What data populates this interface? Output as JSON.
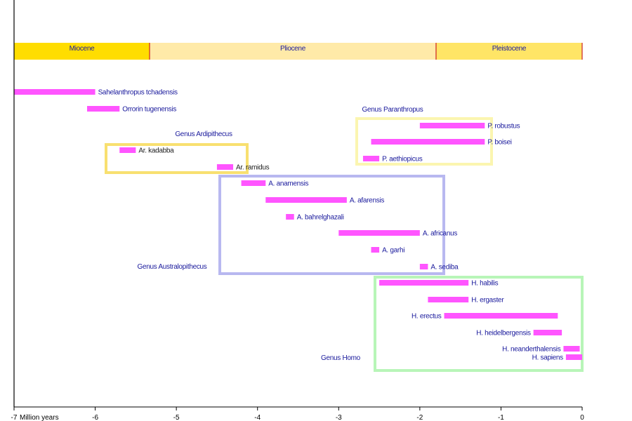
{
  "chart_data": {
    "type": "bar",
    "subtype": "timeline-range",
    "title": "",
    "xlabel": "Million years",
    "ylabel": "",
    "xlim": [
      -7,
      0
    ],
    "x_ticks": [
      -7,
      -6,
      -5,
      -4,
      -3,
      -2,
      -1,
      0
    ],
    "x_tick_labels": [
      "-7",
      "-6",
      "-5",
      "-4",
      "-3",
      "-2",
      "-1",
      "0"
    ],
    "grid": false,
    "bar_color": "#ff55ff",
    "epochs": [
      {
        "name": "Miocene",
        "start": -7.0,
        "end": -5.33,
        "color": "#ffdd00"
      },
      {
        "name": "Pliocene",
        "start": -5.33,
        "end": -1.8,
        "color": "#ffeaa8"
      },
      {
        "name": "Pleistocene",
        "start": -1.8,
        "end": 0,
        "color": "#ffe566"
      }
    ],
    "epoch_divider_color": "#cc2222",
    "species": [
      {
        "name": "Sahelanthropus tchadensis",
        "start": -7.0,
        "end": -6.0,
        "label_side": "right",
        "label_color": "#1a1a9c"
      },
      {
        "name": "Orrorin tugenensis",
        "start": -6.1,
        "end": -5.7,
        "label_side": "right",
        "label_color": "#1a1a9c"
      },
      {
        "name": "Ar. kadabba",
        "start": -5.7,
        "end": -5.5,
        "label_side": "right",
        "label_color": "#222222"
      },
      {
        "name": "Ar. ramidus",
        "start": -4.5,
        "end": -4.3,
        "label_side": "right",
        "label_color": "#222222"
      },
      {
        "name": "P. robustus",
        "start": -2.0,
        "end": -1.2,
        "label_side": "right",
        "label_color": "#1a1a9c"
      },
      {
        "name": "P. boisei",
        "start": -2.6,
        "end": -1.2,
        "label_side": "right",
        "label_color": "#1a1a9c"
      },
      {
        "name": "P. aethiopicus",
        "start": -2.7,
        "end": -2.5,
        "label_side": "right",
        "label_color": "#1a1a9c"
      },
      {
        "name": "A. anamensis",
        "start": -4.2,
        "end": -3.9,
        "label_side": "right",
        "label_color": "#1a1a9c"
      },
      {
        "name": "A. afarensis",
        "start": -3.9,
        "end": -2.9,
        "label_side": "right",
        "label_color": "#1a1a9c"
      },
      {
        "name": "A. bahrelghazali",
        "start": -3.65,
        "end": -3.55,
        "label_side": "right",
        "label_color": "#1a1a9c"
      },
      {
        "name": "A. africanus",
        "start": -3.0,
        "end": -2.0,
        "label_side": "right",
        "label_color": "#1a1a9c"
      },
      {
        "name": "A. garhi",
        "start": -2.6,
        "end": -2.5,
        "label_side": "right",
        "label_color": "#1a1a9c"
      },
      {
        "name": "A. sediba",
        "start": -2.0,
        "end": -1.9,
        "label_side": "right",
        "label_color": "#1a1a9c"
      },
      {
        "name": "H. habilis",
        "start": -2.5,
        "end": -1.4,
        "label_side": "right",
        "label_color": "#1a1a9c"
      },
      {
        "name": "H. ergaster",
        "start": -1.9,
        "end": -1.4,
        "label_side": "right",
        "label_color": "#1a1a9c"
      },
      {
        "name": "H. erectus",
        "start": -1.7,
        "end": -0.3,
        "label_side": "left",
        "label_color": "#1a1a9c"
      },
      {
        "name": "H. heidelbergensis",
        "start": -0.6,
        "end": -0.25,
        "label_side": "left",
        "label_color": "#1a1a9c"
      },
      {
        "name": "H. neanderthalensis",
        "start": -0.23,
        "end": -0.03,
        "label_side": "left",
        "label_color": "#1a1a9c"
      },
      {
        "name": "H. sapiens",
        "start": -0.2,
        "end": 0.0,
        "label_side": "left",
        "label_color": "#1a1a9c"
      }
    ],
    "genus_groups": [
      {
        "name": "Genus Ardipithecus",
        "members": [
          "Ar. kadabba",
          "Ar. ramidus"
        ],
        "color": "#f8e070"
      },
      {
        "name": "Genus Paranthropus",
        "members": [
          "P. robustus",
          "P. boisei",
          "P. aethiopicus"
        ],
        "color": "#fbf5b0"
      },
      {
        "name": "Genus Australopithecus",
        "members": [
          "A. anamensis",
          "A. afarensis",
          "A. bahrelghazali",
          "A. africanus",
          "A. garhi",
          "A. sediba"
        ],
        "color": "#b8b8f0"
      },
      {
        "name": "Genus Homo",
        "members": [
          "H. habilis",
          "H. ergaster",
          "H. erectus",
          "H. heidelbergensis",
          "H. neanderthalensis",
          "H. sapiens"
        ],
        "color": "#b8f5b8"
      }
    ]
  }
}
